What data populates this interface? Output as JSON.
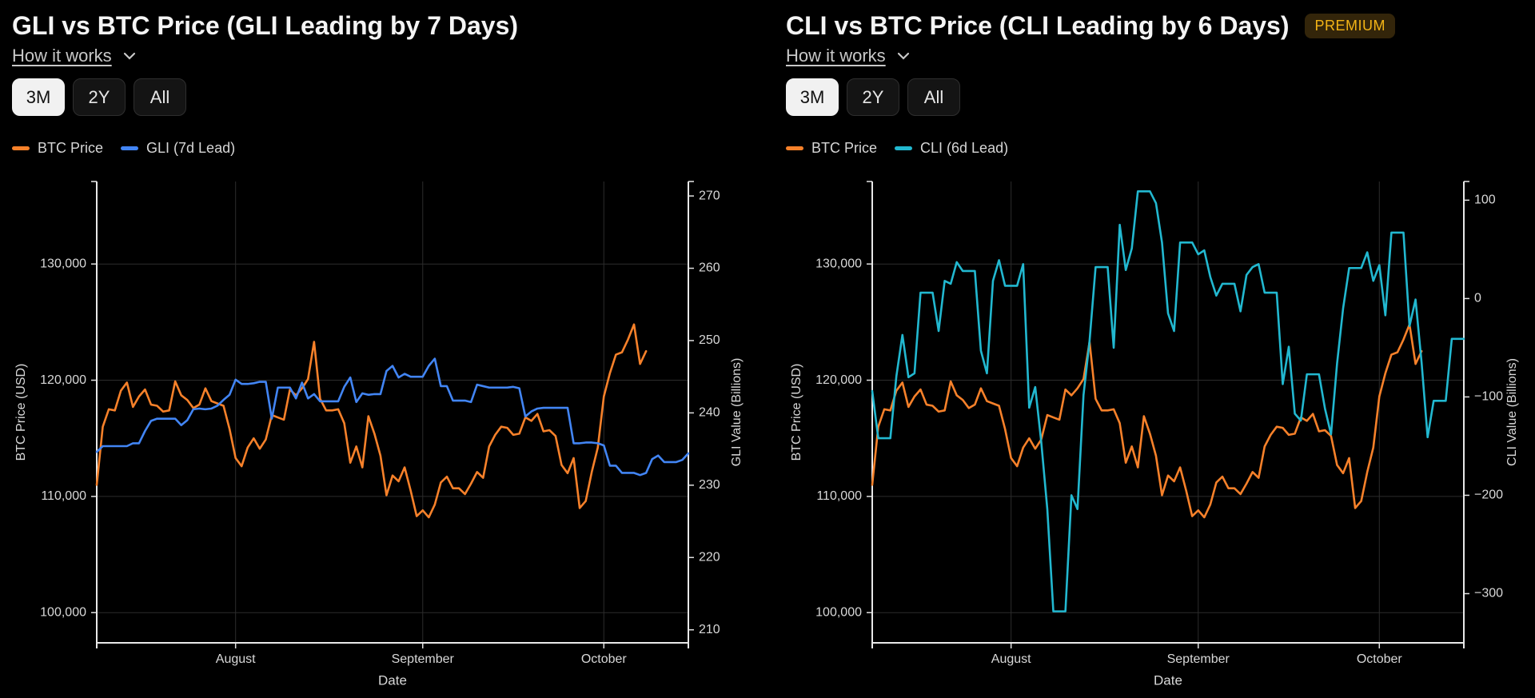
{
  "chart_data": [
    {
      "type": "line",
      "title": "GLI vs BTC Price (GLI Leading by 7 Days)",
      "link": "How it works",
      "ranges": [
        "3M",
        "2Y",
        "All"
      ],
      "selected_range": "3M",
      "xlabel": "Date",
      "ylabel": "BTC Price (USD)",
      "y2label": "GLI Value (Billions)",
      "categories": [
        null,
        null,
        null,
        null,
        null,
        null,
        null,
        null,
        null,
        null,
        null,
        null,
        null,
        null,
        null,
        null,
        null,
        null,
        null,
        null,
        null,
        null,
        null,
        "August",
        null,
        null,
        null,
        null,
        null,
        null,
        null,
        null,
        null,
        null,
        null,
        null,
        null,
        null,
        null,
        null,
        null,
        null,
        null,
        null,
        null,
        null,
        null,
        null,
        null,
        null,
        null,
        null,
        null,
        null,
        "September",
        null,
        null,
        null,
        null,
        null,
        null,
        null,
        null,
        null,
        null,
        null,
        null,
        null,
        null,
        null,
        null,
        null,
        null,
        null,
        null,
        null,
        null,
        null,
        null,
        null,
        null,
        null,
        null,
        null,
        "October",
        null,
        null,
        null,
        null,
        null,
        null,
        null,
        null,
        null,
        null,
        null,
        null,
        null,
        null
      ],
      "series": [
        {
          "name": "BTC Price",
          "color": "#f7812a",
          "values": [
            111000,
            116000,
            117500,
            117400,
            119100,
            119800,
            117700,
            118600,
            119200,
            117900,
            117800,
            117300,
            117400,
            119900,
            118700,
            118300,
            117600,
            117900,
            119300,
            118200,
            118000,
            117800,
            115800,
            113300,
            112600,
            114200,
            115000,
            114100,
            114900,
            117000,
            116800,
            116600,
            119200,
            118700,
            119300,
            120100,
            123300,
            118400,
            117400,
            117400,
            117500,
            116300,
            112900,
            114300,
            112500,
            116900,
            115400,
            113500,
            110100,
            111800,
            111300,
            112500,
            110500,
            108300,
            108800,
            108200,
            109300,
            111200,
            111700,
            110700,
            110700,
            110200,
            111100,
            112100,
            111600,
            114300,
            115300,
            116000,
            115900,
            115300,
            115400,
            116800,
            116500,
            117100,
            115600,
            115700,
            115200,
            112700,
            112000,
            113300,
            109000,
            109600,
            112100,
            114200,
            118600,
            120600,
            122200,
            122400,
            123500,
            124800,
            121400,
            122500,
            null,
            null,
            null,
            null,
            null,
            null,
            null
          ]
        },
        {
          "name": "GLI (7d Lead)",
          "color": "#4285f4",
          "axis": "y2",
          "values": [
            234.6,
            235.4,
            235.4,
            235.4,
            235.4,
            235.4,
            235.8,
            235.8,
            237.5,
            238.9,
            239.2,
            239.2,
            239.2,
            239.2,
            238.3,
            239.0,
            240.5,
            240.6,
            240.5,
            240.6,
            241.0,
            241.8,
            242.5,
            244.6,
            244.0,
            244.0,
            244.1,
            244.3,
            244.3,
            239.2,
            243.5,
            243.5,
            243.5,
            242.0,
            244.2,
            242.0,
            242.6,
            241.6,
            241.6,
            241.6,
            241.6,
            243.6,
            244.9,
            241.5,
            242.7,
            242.5,
            242.6,
            242.6,
            245.8,
            246.5,
            244.9,
            245.4,
            245.0,
            245.0,
            245.0,
            246.5,
            247.5,
            243.7,
            243.7,
            241.7,
            241.7,
            241.7,
            241.5,
            243.9,
            243.7,
            243.5,
            243.5,
            243.5,
            243.5,
            243.6,
            243.4,
            239.5,
            240.2,
            240.6,
            240.7,
            240.7,
            240.7,
            240.7,
            240.7,
            235.8,
            235.8,
            235.9,
            235.9,
            235.8,
            235.5,
            232.7,
            232.7,
            231.7,
            231.7,
            231.7,
            231.4,
            231.7,
            233.6,
            234.1,
            233.2,
            233.2,
            233.2,
            233.5,
            234.4
          ]
        }
      ],
      "ylim": [
        97400,
        137100
      ],
      "yticks": [
        {
          "value": 100000,
          "label": "100,000"
        },
        {
          "value": 110000,
          "label": "110,000"
        },
        {
          "value": 120000,
          "label": "120,000"
        },
        {
          "value": 130000,
          "label": "130,000"
        }
      ],
      "y2lim": [
        208.2,
        272
      ],
      "y2ticks": [
        210,
        220,
        230,
        240,
        250,
        260,
        270
      ],
      "grid": true
    },
    {
      "type": "line",
      "title": "CLI vs BTC Price (CLI Leading by 6 Days)",
      "badge": "PREMIUM",
      "link": "How it works",
      "ranges": [
        "3M",
        "2Y",
        "All"
      ],
      "selected_range": "3M",
      "xlabel": "Date",
      "ylabel": "BTC Price (USD)",
      "y2label": "CLI Value (Billions)",
      "categories": [
        null,
        null,
        null,
        null,
        null,
        null,
        null,
        null,
        null,
        null,
        null,
        null,
        null,
        null,
        null,
        null,
        null,
        null,
        null,
        null,
        null,
        null,
        null,
        "August",
        null,
        null,
        null,
        null,
        null,
        null,
        null,
        null,
        null,
        null,
        null,
        null,
        null,
        null,
        null,
        null,
        null,
        null,
        null,
        null,
        null,
        null,
        null,
        null,
        null,
        null,
        null,
        null,
        null,
        null,
        "September",
        null,
        null,
        null,
        null,
        null,
        null,
        null,
        null,
        null,
        null,
        null,
        null,
        null,
        null,
        null,
        null,
        null,
        null,
        null,
        null,
        null,
        null,
        null,
        null,
        null,
        null,
        null,
        null,
        null,
        "October",
        null,
        null,
        null,
        null,
        null,
        null,
        null,
        null,
        null,
        null,
        null,
        null,
        null,
        null
      ],
      "series": [
        {
          "name": "BTC Price",
          "color": "#f7812a",
          "values": [
            111000,
            116000,
            117500,
            117400,
            119100,
            119800,
            117700,
            118600,
            119200,
            117900,
            117800,
            117300,
            117400,
            119900,
            118700,
            118300,
            117600,
            117900,
            119300,
            118200,
            118000,
            117800,
            115800,
            113300,
            112600,
            114200,
            115000,
            114100,
            114900,
            117000,
            116800,
            116600,
            119200,
            118700,
            119300,
            120100,
            123300,
            118400,
            117400,
            117400,
            117500,
            116300,
            112900,
            114300,
            112500,
            116900,
            115400,
            113500,
            110100,
            111800,
            111300,
            112500,
            110500,
            108300,
            108800,
            108200,
            109300,
            111200,
            111700,
            110700,
            110700,
            110200,
            111100,
            112100,
            111600,
            114300,
            115300,
            116000,
            115900,
            115300,
            115400,
            116800,
            116500,
            117100,
            115600,
            115700,
            115200,
            112700,
            112000,
            113300,
            109000,
            109600,
            112100,
            114200,
            118600,
            120600,
            122200,
            122400,
            123500,
            124800,
            121400,
            122500,
            null,
            null,
            null,
            null,
            null,
            null,
            null
          ]
        },
        {
          "name": "CLI (6d Lead)",
          "color": "#22b8d0",
          "axis": "y2",
          "values": [
            -94,
            -142,
            -142,
            -142,
            -79,
            -37,
            -80,
            -76,
            6,
            6,
            6,
            -33,
            18,
            15,
            37,
            28,
            28,
            28,
            -53,
            -76,
            18,
            39,
            13,
            13,
            13,
            35,
            -111,
            -90,
            -146,
            -214,
            -318,
            -318,
            -318,
            -200,
            -214,
            -98,
            -43,
            32,
            32,
            32,
            -50,
            75,
            29,
            51,
            109,
            109,
            109,
            97,
            57,
            -15,
            -33,
            57,
            57,
            57,
            45,
            49,
            22,
            3,
            15,
            15,
            15,
            -13,
            24,
            32,
            35,
            6,
            6,
            6,
            -87,
            -49,
            -117,
            -124,
            -77,
            -77,
            -77,
            -112,
            -138,
            -66,
            -10,
            31,
            31,
            31,
            47,
            18,
            34,
            -17,
            67,
            67,
            67,
            -28,
            -1,
            -65,
            -141,
            -104,
            -104,
            -104,
            -41,
            -41,
            -41
          ]
        }
      ],
      "ylim": [
        97400,
        137100
      ],
      "yticks": [
        {
          "value": 100000,
          "label": "100,000"
        },
        {
          "value": 110000,
          "label": "110,000"
        },
        {
          "value": 120000,
          "label": "120,000"
        },
        {
          "value": 130000,
          "label": "130,000"
        }
      ],
      "y2lim": [
        -350,
        119
      ],
      "y2ticks": [
        {
          "value": -300,
          "label": "−300"
        },
        {
          "value": -200,
          "label": "−200"
        },
        {
          "value": -100,
          "label": "−100"
        },
        0,
        100
      ],
      "grid": true
    }
  ]
}
